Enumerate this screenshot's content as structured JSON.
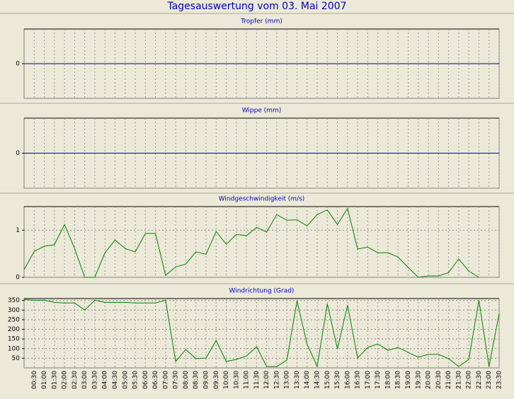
{
  "page_title": "Tagesauswertung vom 03. Mai 2007",
  "chart_data": [
    {
      "type": "line",
      "title": "Tropfer (mm)",
      "ylim": [
        -1,
        1
      ],
      "yticks": [
        0
      ],
      "grid": true,
      "tick_line_color": "#0000a0"
    },
    {
      "type": "line",
      "title": "Wippe (mm)",
      "ylim": [
        -1,
        1
      ],
      "yticks": [
        0
      ],
      "grid": true,
      "tick_line_color": "#0000a0"
    },
    {
      "type": "line",
      "title": "Windgeschwindigkeit (m/s)",
      "ylim": [
        0,
        1.5
      ],
      "yticks": [
        0,
        1
      ],
      "grid": true,
      "tick_line_color": "#888888",
      "series": [
        {
          "color": "#008000",
          "values": [
            0.16,
            0.55,
            0.66,
            0.69,
            1.12,
            0.61,
            0,
            0,
            0.52,
            0.79,
            0.61,
            0.54,
            0.93,
            0.93,
            0.04,
            0.22,
            0.28,
            0.54,
            0.49,
            0.97,
            0.7,
            0.91,
            0.88,
            1.06,
            0.96,
            1.33,
            1.21,
            1.22,
            1.09,
            1.33,
            1.43,
            1.12,
            1.46,
            0.6,
            0.64,
            0.52,
            0.52,
            0.43,
            0.21,
            0,
            0.03,
            0.03,
            0.1,
            0.39,
            0.13,
            0,
            null,
            null
          ]
        }
      ]
    },
    {
      "type": "line",
      "title": "Windrichtung (Grad)",
      "ylim": [
        0,
        360
      ],
      "yticks": [
        50,
        100,
        150,
        200,
        250,
        300,
        350
      ],
      "grid": true,
      "tick_line_color": "#888888",
      "categories": [
        null,
        "00:30",
        "01:00",
        "01:30",
        "02:00",
        "02:30",
        "03:00",
        "03:30",
        "04:00",
        "04:30",
        "05:00",
        "05:30",
        "06:00",
        "06:30",
        "07:00",
        "07:30",
        "08:00",
        "08:30",
        "09:00",
        "09:30",
        "10:00",
        "10:30",
        "11:00",
        "11:30",
        "12:00",
        "12:30",
        "13:00",
        "13:30",
        "14:00",
        "14:30",
        "15:00",
        "15:30",
        "16:00",
        "16:30",
        "17:00",
        "17:30",
        "18:00",
        "18:30",
        "19:00",
        "19:30",
        "20:00",
        "20:30",
        "21:00",
        "21:30",
        "22:00",
        "22:30",
        "23:00",
        "23:30"
      ],
      "series": [
        {
          "color": "#008000",
          "values": [
            355,
            351,
            351,
            340,
            337,
            337,
            300,
            351,
            340,
            340,
            340,
            337,
            337,
            337,
            351,
            33,
            95,
            48,
            51,
            143,
            33,
            44,
            62,
            110,
            7,
            7,
            40,
            348,
            124,
            7,
            333,
            99,
            326,
            51,
            106,
            124,
            91,
            106,
            80,
            55,
            70,
            70,
            48,
            7,
            44,
            351,
            7,
            282
          ]
        }
      ]
    }
  ]
}
